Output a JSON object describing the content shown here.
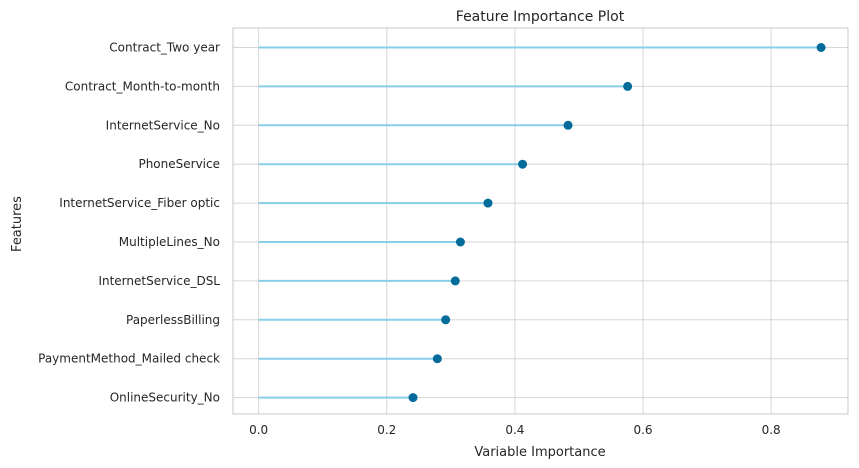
{
  "chart_data": {
    "type": "lollipop",
    "title": "Feature Importance Plot",
    "xlabel": "Variable Importance",
    "ylabel": "Features",
    "xlim": [
      -0.04,
      0.92
    ],
    "xticks": [
      0.0,
      0.2,
      0.4,
      0.6,
      0.8
    ],
    "xtick_labels": [
      "0.0",
      "0.2",
      "0.4",
      "0.6",
      "0.8"
    ],
    "grid": true,
    "categories": [
      "Contract_Two year",
      "Contract_Month-to-month",
      "InternetService_No",
      "PhoneService",
      "InternetService_Fiber optic",
      "MultipleLines_No",
      "InternetService_DSL",
      "PaperlessBilling",
      "PaymentMethod_Mailed check",
      "OnlineSecurity_No"
    ],
    "values": [
      0.878,
      0.576,
      0.483,
      0.412,
      0.358,
      0.315,
      0.307,
      0.292,
      0.279,
      0.241
    ],
    "line_color": "#87ceeb",
    "marker_color": "#036c9a",
    "grid_color": "#d6d6d6",
    "frame_color": "#c8c8c8"
  }
}
